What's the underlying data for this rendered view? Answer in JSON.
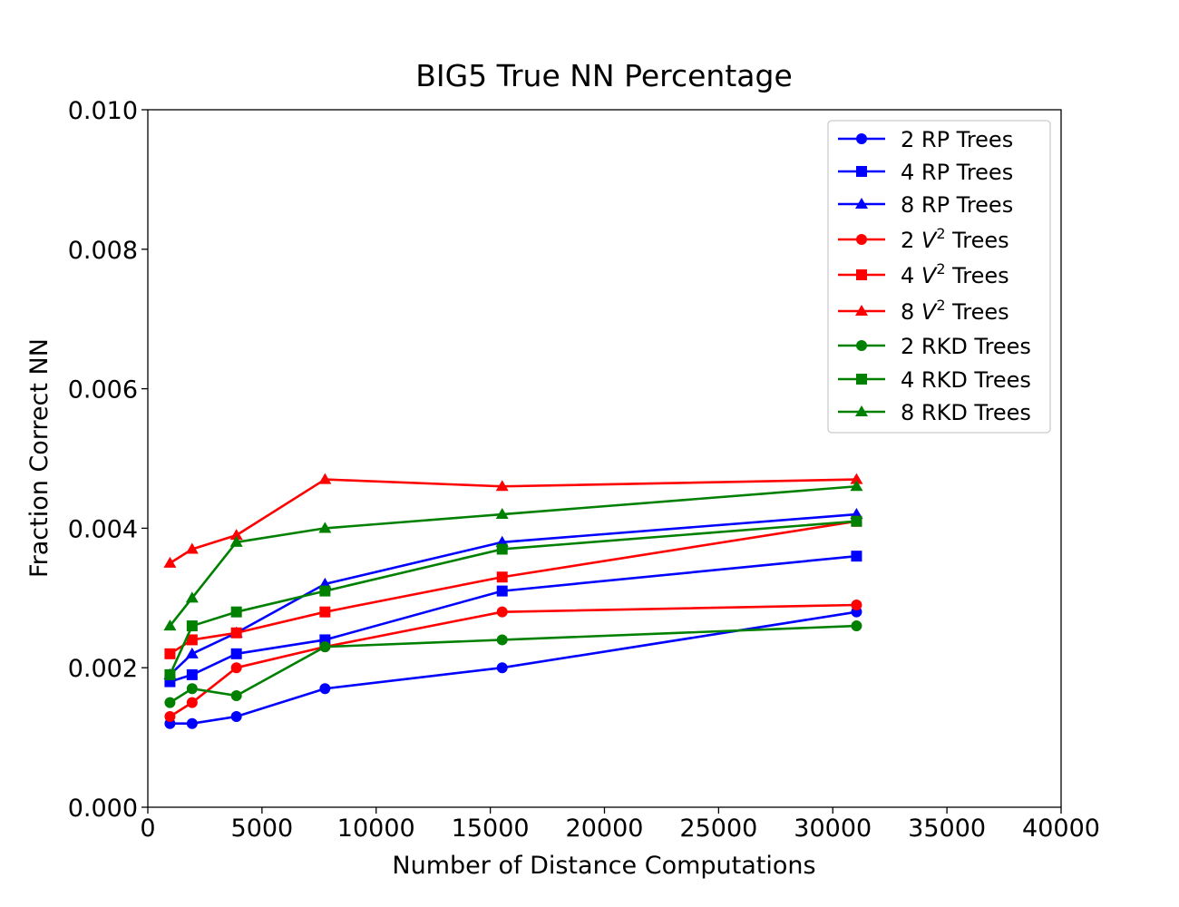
{
  "chart_data": {
    "type": "line",
    "title": "BIG5 True NN Percentage",
    "xlabel": "Number of Distance Computations",
    "ylabel": "Fraction Correct NN",
    "xlim": [
      0,
      40000
    ],
    "ylim": [
      0,
      0.01
    ],
    "xticks": [
      0,
      5000,
      10000,
      15000,
      20000,
      25000,
      30000,
      35000,
      40000
    ],
    "xtick_labels": [
      "0",
      "5000",
      "10000",
      "15000",
      "20000",
      "25000",
      "30000",
      "35000",
      "40000"
    ],
    "yticks": [
      0,
      0.002,
      0.004,
      0.006,
      0.008,
      0.01
    ],
    "ytick_labels": [
      "0.000",
      "0.002",
      "0.004",
      "0.006",
      "0.008",
      "0.010"
    ],
    "grid": false,
    "legend_position": "top-right",
    "x": [
      970,
      1940,
      3880,
      7760,
      15520,
      31040
    ],
    "series": [
      {
        "name_prefix": "2",
        "name_main": "RP Trees",
        "color": "#0000ff",
        "marker": "circle",
        "values": [
          0.0012,
          0.0012,
          0.0013,
          0.0017,
          0.002,
          0.0028
        ]
      },
      {
        "name_prefix": "4",
        "name_main": "RP Trees",
        "color": "#0000ff",
        "marker": "square",
        "values": [
          0.0018,
          0.0019,
          0.0022,
          0.0024,
          0.0031,
          0.0036
        ]
      },
      {
        "name_prefix": "8",
        "name_main": "RP Trees",
        "color": "#0000ff",
        "marker": "triangle",
        "values": [
          0.0019,
          0.0022,
          0.0025,
          0.0032,
          0.0038,
          0.0042
        ]
      },
      {
        "name_prefix": "2",
        "name_var": "V",
        "name_sup": "2",
        "name_main": "Trees",
        "color": "#ff0000",
        "marker": "circle",
        "values": [
          0.0013,
          0.0015,
          0.002,
          0.0023,
          0.0028,
          0.0029
        ]
      },
      {
        "name_prefix": "4",
        "name_var": "V",
        "name_sup": "2",
        "name_main": "Trees",
        "color": "#ff0000",
        "marker": "square",
        "values": [
          0.0022,
          0.0024,
          0.0025,
          0.0028,
          0.0033,
          0.0041
        ]
      },
      {
        "name_prefix": "8",
        "name_var": "V",
        "name_sup": "2",
        "name_main": "Trees",
        "color": "#ff0000",
        "marker": "triangle",
        "values": [
          0.0035,
          0.0037,
          0.0039,
          0.0047,
          0.0046,
          0.0047
        ]
      },
      {
        "name_prefix": "2",
        "name_main": "RKD Trees",
        "color": "#008000",
        "marker": "circle",
        "values": [
          0.0015,
          0.0017,
          0.0016,
          0.0023,
          0.0024,
          0.0026
        ]
      },
      {
        "name_prefix": "4",
        "name_main": "RKD Trees",
        "color": "#008000",
        "marker": "square",
        "values": [
          0.0019,
          0.0026,
          0.0028,
          0.0031,
          0.0037,
          0.0041
        ]
      },
      {
        "name_prefix": "8",
        "name_main": "RKD Trees",
        "color": "#008000",
        "marker": "triangle",
        "values": [
          0.0026,
          0.003,
          0.0038,
          0.004,
          0.0042,
          0.0046
        ]
      }
    ]
  }
}
